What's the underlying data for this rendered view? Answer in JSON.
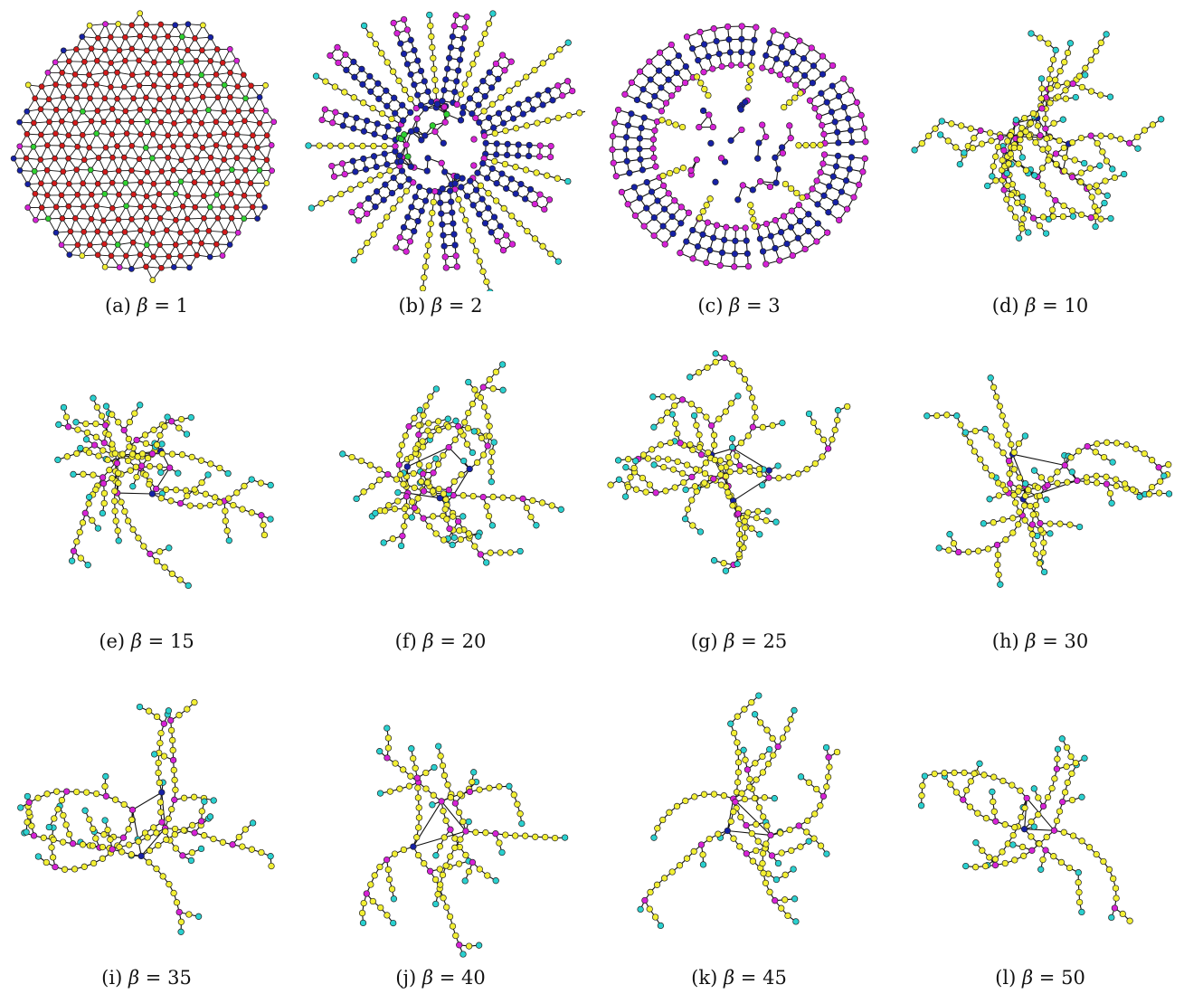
{
  "figure": {
    "node_colors": {
      "red": "#d21a1a",
      "green": "#2fd12f",
      "blue": "#1621a6",
      "magenta": "#d622d6",
      "yellow": "#f2ef33",
      "cyan": "#2ad0cf",
      "edge": "#111111",
      "node_stroke": "#222222"
    },
    "greek_symbol": "β",
    "equals_symbol": "=",
    "panels": [
      {
        "tag": "(a)",
        "beta": "1",
        "style": "dense-disk"
      },
      {
        "tag": "(b)",
        "beta": "2",
        "style": "ladder-spokes"
      },
      {
        "tag": "(c)",
        "beta": "3",
        "style": "ladder-rings"
      },
      {
        "tag": "(d)",
        "beta": "10",
        "style": "branching"
      },
      {
        "tag": "(e)",
        "beta": "15",
        "style": "branching"
      },
      {
        "tag": "(f)",
        "beta": "20",
        "style": "branching"
      },
      {
        "tag": "(g)",
        "beta": "25",
        "style": "branching"
      },
      {
        "tag": "(h)",
        "beta": "30",
        "style": "branching"
      },
      {
        "tag": "(i)",
        "beta": "35",
        "style": "branching"
      },
      {
        "tag": "(j)",
        "beta": "40",
        "style": "branching"
      },
      {
        "tag": "(k)",
        "beta": "45",
        "style": "branching"
      },
      {
        "tag": "(l)",
        "beta": "50",
        "style": "branching"
      }
    ]
  }
}
